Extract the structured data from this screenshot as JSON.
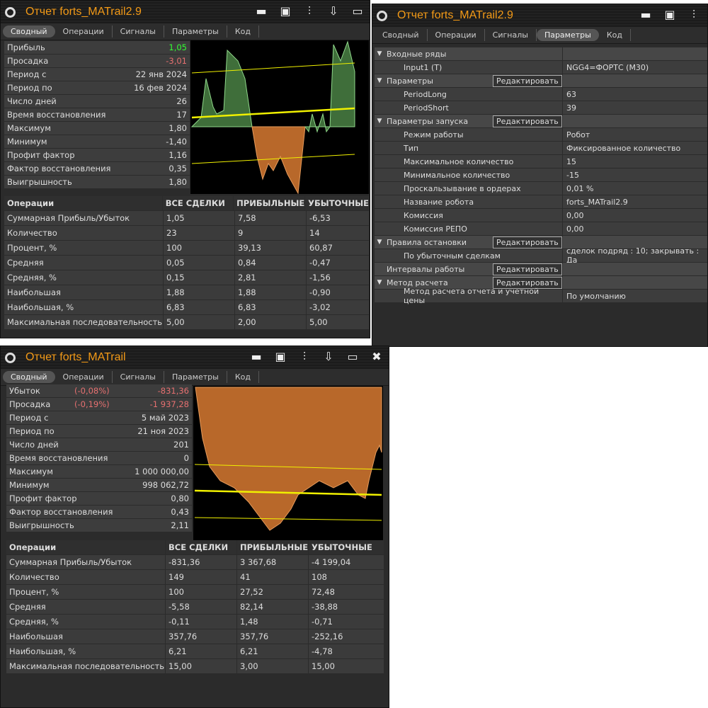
{
  "tabs": [
    "Сводный",
    "Операции",
    "Сигналы",
    "Параметры",
    "Код"
  ],
  "ops_headers": [
    "Операции",
    "ВСЕ СДЕЛКИ",
    "ПРИБЫЛЬНЫЕ",
    "УБЫТОЧНЫЕ"
  ],
  "w1": {
    "title": "Отчет forts_MATrail2.9",
    "active_tab": 0,
    "stats": [
      {
        "label": "Прибыль",
        "value": "1,05",
        "color": "green"
      },
      {
        "label": "Просадка",
        "value": "-3,01",
        "color": "red"
      },
      {
        "label": "Период с",
        "value": "22 янв 2024"
      },
      {
        "label": "Период по",
        "value": "16 фев 2024"
      },
      {
        "label": "Число дней",
        "value": "26"
      },
      {
        "label": "Время восстановления",
        "value": "17"
      },
      {
        "label": "Максимум",
        "value": "1,80"
      },
      {
        "label": "Минимум",
        "value": "-1,40"
      },
      {
        "label": "Профит фактор",
        "value": "1,16"
      },
      {
        "label": "Фактор восстановления",
        "value": "0,35"
      },
      {
        "label": "Выигрышность",
        "value": "1,80"
      }
    ],
    "ops": [
      [
        "Суммарная Прибыль/Убыток",
        "1,05",
        "7,58",
        "-6,53"
      ],
      [
        "Количество",
        "23",
        "9",
        "14"
      ],
      [
        "Процент, %",
        "100",
        "39,13",
        "60,87"
      ],
      [
        "Средняя",
        "0,05",
        "0,84",
        "-0,47"
      ],
      [
        "Средняя, %",
        "0,15",
        "2,81",
        "-1,56"
      ],
      [
        "Наибольшая",
        "1,88",
        "1,88",
        "-0,90"
      ],
      [
        "Наибольшая, %",
        "6,83",
        "6,83",
        "-3,02"
      ],
      [
        "Максимальная последовательность",
        "5,00",
        "2,00",
        "5,00"
      ]
    ]
  },
  "w2": {
    "title": "Отчет forts_MATrail2.9",
    "active_tab": 3,
    "edit_label": "Редактировать",
    "props": [
      {
        "k": "Входные ряды",
        "v": "",
        "group": true
      },
      {
        "k": "Input1 (T)",
        "v": "NGG4=ФОРТС (M30)"
      },
      {
        "k": "Параметры",
        "v": "",
        "group": true,
        "btn": true
      },
      {
        "k": "PeriodLong",
        "v": "63"
      },
      {
        "k": "PeriodShort",
        "v": "39"
      },
      {
        "k": "Параметры запуска",
        "v": "",
        "group": true,
        "btn": true
      },
      {
        "k": "Режим работы",
        "v": "Робот"
      },
      {
        "k": "Тип",
        "v": "Фиксированное количество"
      },
      {
        "k": "Максимальное количество",
        "v": "15"
      },
      {
        "k": "Минимальное количество",
        "v": "-15"
      },
      {
        "k": "Проскальзывание в ордерах",
        "v": "0,01 %"
      },
      {
        "k": "Название робота",
        "v": "forts_MATrail2.9"
      },
      {
        "k": "Комиссия",
        "v": "0,00"
      },
      {
        "k": "Комиссия РЕПО",
        "v": "0,00"
      },
      {
        "k": "Правила остановки",
        "v": "",
        "group": true,
        "btn": true
      },
      {
        "k": "По убыточным сделкам",
        "v": "сделок подряд : 10; закрывать : Да"
      },
      {
        "k": "Интервалы работы",
        "v": "",
        "group": true,
        "btn": true,
        "notri": true
      },
      {
        "k": "Метод расчета",
        "v": "",
        "group": true,
        "btn": true
      },
      {
        "k": "Метод расчета отчета и учетной цены",
        "v": "По умолчанию"
      }
    ]
  },
  "w3": {
    "title": "Отчет forts_MATrail",
    "active_tab": 0,
    "stats": [
      {
        "label": "Убыток",
        "pct": "(-0,08%)",
        "value": "-831,36",
        "color": "red"
      },
      {
        "label": "Просадка",
        "pct": "(-0,19%)",
        "value": "-1 937,28",
        "color": "red"
      },
      {
        "label": "Период с",
        "value": "5 май 2023"
      },
      {
        "label": "Период по",
        "value": "21 ноя 2023"
      },
      {
        "label": "Число дней",
        "value": "201"
      },
      {
        "label": "Время восстановления",
        "value": "0"
      },
      {
        "label": "Максимум",
        "value": "1 000 000,00"
      },
      {
        "label": "Минимум",
        "value": "998 062,72"
      },
      {
        "label": "Профит фактор",
        "value": "0,80"
      },
      {
        "label": "Фактор восстановления",
        "value": "0,43"
      },
      {
        "label": "Выигрышность",
        "value": "2,11"
      }
    ],
    "ops": [
      [
        "Суммарная Прибыль/Убыток",
        "-831,36",
        "3 367,68",
        "-4 199,04"
      ],
      [
        "Количество",
        "149",
        "41",
        "108"
      ],
      [
        "Процент, %",
        "100",
        "27,52",
        "72,48"
      ],
      [
        "Средняя",
        "-5,58",
        "82,14",
        "-38,88"
      ],
      [
        "Средняя, %",
        "-0,11",
        "1,48",
        "-0,71"
      ],
      [
        "Наибольшая",
        "357,76",
        "357,76",
        "-252,16"
      ],
      [
        "Наибольшая, %",
        "6,21",
        "6,21",
        "-4,78"
      ],
      [
        "Максимальная последовательность",
        "15,00",
        "3,00",
        "15,00"
      ]
    ]
  },
  "colors": {
    "title": "#f39a17",
    "profit": "#33ff33",
    "loss": "#e67070",
    "equity_up": "#3f6e3a",
    "equity_down": "#b8682a",
    "trend": "#f0f000"
  }
}
